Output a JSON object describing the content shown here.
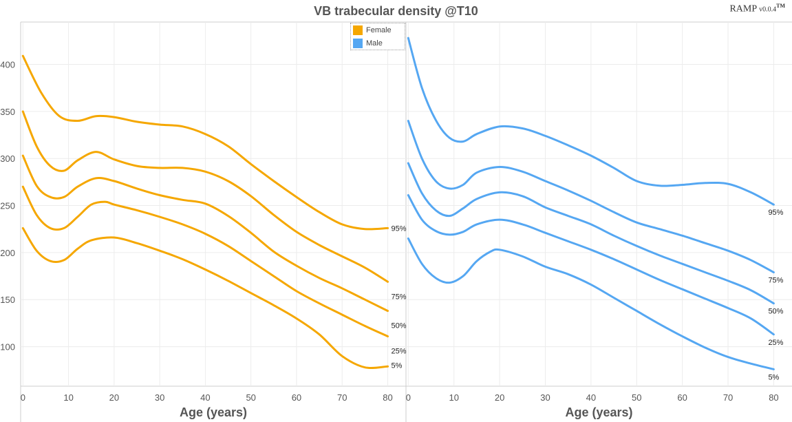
{
  "title": "VB trabecular density @T10",
  "watermark": {
    "name": "RAMP",
    "version": "v0.0.4",
    "mark": "TM"
  },
  "legend": [
    {
      "label": "Female",
      "color": "#F5A700"
    },
    {
      "label": "Male",
      "color": "#55A7F2"
    }
  ],
  "chart_data": [
    {
      "type": "line",
      "panel": "left",
      "xlabel": "Age (years)",
      "xticks": [
        0,
        10,
        20,
        30,
        40,
        50,
        60,
        70,
        80
      ],
      "yticks": [
        100,
        150,
        200,
        250,
        300,
        350,
        400
      ],
      "xlim": [
        -0.5,
        84
      ],
      "ylim": [
        58,
        445
      ],
      "color": "#F5A700",
      "grid": true,
      "series": [
        {
          "name": "95%",
          "x": [
            0,
            4,
            8,
            12,
            16,
            20,
            25,
            30,
            35,
            40,
            45,
            50,
            55,
            60,
            65,
            70,
            75,
            80
          ],
          "y": [
            409,
            370,
            345,
            340,
            345,
            344,
            339,
            336,
            334,
            326,
            313,
            294,
            276,
            259,
            243,
            230,
            225,
            226
          ]
        },
        {
          "name": "75%",
          "x": [
            0,
            3,
            6,
            9,
            12,
            16,
            20,
            25,
            30,
            35,
            40,
            45,
            50,
            55,
            60,
            65,
            70,
            75,
            80
          ],
          "y": [
            350,
            313,
            292,
            287,
            298,
            307,
            299,
            292,
            290,
            290,
            286,
            276,
            260,
            240,
            222,
            208,
            196,
            184,
            169
          ]
        },
        {
          "name": "50%",
          "x": [
            0,
            3,
            6,
            9,
            12,
            16,
            20,
            25,
            30,
            35,
            40,
            45,
            50,
            55,
            60,
            65,
            70,
            75,
            80
          ],
          "y": [
            303,
            271,
            259,
            259,
            270,
            279,
            276,
            268,
            261,
            256,
            252,
            239,
            221,
            201,
            186,
            173,
            162,
            150,
            138
          ]
        },
        {
          "name": "25%",
          "x": [
            0,
            3,
            6,
            9,
            12,
            15,
            18,
            20,
            25,
            30,
            35,
            40,
            45,
            50,
            55,
            60,
            65,
            70,
            75,
            80
          ],
          "y": [
            270,
            240,
            226,
            226,
            238,
            251,
            254,
            251,
            245,
            238,
            230,
            220,
            207,
            191,
            175,
            159,
            146,
            134,
            122,
            111
          ]
        },
        {
          "name": "5%",
          "x": [
            0,
            3,
            6,
            9,
            12,
            15,
            20,
            25,
            30,
            35,
            40,
            45,
            50,
            55,
            60,
            65,
            70,
            75,
            80
          ],
          "y": [
            226,
            202,
            191,
            192,
            204,
            213,
            216,
            210,
            202,
            193,
            182,
            170,
            157,
            144,
            130,
            113,
            90,
            78,
            79
          ]
        }
      ]
    },
    {
      "type": "line",
      "panel": "right",
      "xlabel": "Age (years)",
      "xticks": [
        0,
        10,
        20,
        30,
        40,
        50,
        60,
        70,
        80
      ],
      "xlim": [
        -0.5,
        84
      ],
      "ylim": [
        58,
        445
      ],
      "color": "#55A7F2",
      "grid": true,
      "series": [
        {
          "name": "95%",
          "x": [
            0,
            3,
            6,
            9,
            12,
            15,
            20,
            25,
            30,
            35,
            40,
            45,
            50,
            55,
            60,
            65,
            70,
            75,
            80
          ],
          "y": [
            428,
            375,
            341,
            322,
            318,
            326,
            334,
            332,
            324,
            314,
            303,
            290,
            276,
            271,
            272,
            274,
            273,
            264,
            251
          ]
        },
        {
          "name": "75%",
          "x": [
            0,
            3,
            6,
            9,
            12,
            15,
            20,
            25,
            30,
            35,
            40,
            45,
            50,
            55,
            60,
            65,
            70,
            75,
            80
          ],
          "y": [
            340,
            300,
            276,
            268,
            272,
            285,
            291,
            286,
            276,
            266,
            255,
            243,
            232,
            225,
            218,
            210,
            202,
            192,
            179
          ]
        },
        {
          "name": "50%",
          "x": [
            0,
            3,
            6,
            9,
            12,
            15,
            20,
            25,
            30,
            35,
            40,
            45,
            50,
            55,
            60,
            65,
            70,
            75,
            80
          ],
          "y": [
            295,
            263,
            245,
            239,
            247,
            257,
            264,
            260,
            248,
            239,
            230,
            218,
            207,
            197,
            188,
            179,
            170,
            160,
            146
          ]
        },
        {
          "name": "25%",
          "x": [
            0,
            3,
            6,
            9,
            12,
            15,
            20,
            25,
            30,
            35,
            40,
            45,
            50,
            55,
            60,
            65,
            70,
            75,
            80
          ],
          "y": [
            261,
            235,
            223,
            219,
            222,
            230,
            235,
            230,
            221,
            212,
            203,
            193,
            182,
            171,
            161,
            151,
            141,
            130,
            113
          ]
        },
        {
          "name": "5%",
          "x": [
            0,
            3,
            6,
            9,
            12,
            15,
            18,
            20,
            25,
            30,
            35,
            40,
            45,
            50,
            55,
            60,
            65,
            70,
            75,
            80
          ],
          "y": [
            215,
            188,
            173,
            168,
            175,
            191,
            201,
            203,
            196,
            185,
            177,
            166,
            152,
            138,
            124,
            111,
            99,
            89,
            82,
            76
          ]
        }
      ]
    }
  ]
}
